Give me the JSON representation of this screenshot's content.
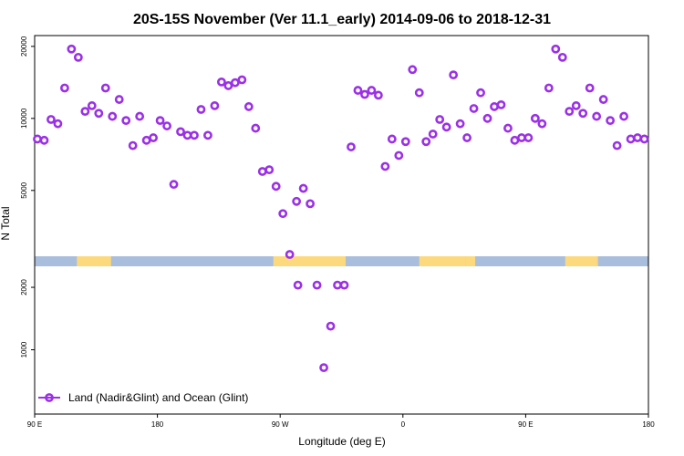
{
  "chart_data": {
    "type": "scatter",
    "title": "20S-15S November (Ver 11.1_early)   2014-09-06 to 2018-12-31",
    "xlabel": "Longitude (deg E)",
    "ylabel": "N Total",
    "x_ticks": [
      {
        "value": 90,
        "label": "90 E"
      },
      {
        "value": 180,
        "label": "180"
      },
      {
        "value": 270,
        "label": "90 W"
      },
      {
        "value": 360,
        "label": "0"
      },
      {
        "value": 450,
        "label": "90 E"
      },
      {
        "value": 540,
        "label": "180"
      }
    ],
    "upper_panel": {
      "scale": "log",
      "ylim": [
        2700,
        22000
      ],
      "y_ticks": [
        5000,
        10000,
        20000
      ]
    },
    "lower_panel": {
      "scale": "log",
      "ylim": [
        500,
        2500
      ],
      "y_ticks": [
        1000,
        2000
      ]
    },
    "band": {
      "ocean_color": "#a8bedc",
      "land_color": "#fdd97d",
      "land_segments": [
        [
          121,
          146
        ],
        [
          265,
          318
        ],
        [
          372,
          406
        ],
        [
          406,
          413
        ],
        [
          479,
          502
        ],
        [
          502,
          503
        ]
      ]
    },
    "series": [
      {
        "name": "Land (Nadir&Glint) and Ocean (Glint)",
        "color": "#9b30e6",
        "x": [
          92,
          97,
          102,
          107,
          112,
          117,
          122,
          127,
          132,
          137,
          142,
          147,
          152,
          157,
          162,
          167,
          172,
          177,
          182,
          187,
          192,
          197,
          202,
          207,
          212,
          217,
          222,
          227,
          232,
          237,
          242,
          247,
          252,
          257,
          262,
          267,
          272,
          277,
          282,
          287,
          292,
          297,
          302,
          307,
          312,
          317,
          322,
          327,
          332,
          337,
          342,
          347,
          352,
          357,
          362,
          367,
          372,
          377,
          382,
          387,
          392,
          397,
          402,
          407,
          412,
          417,
          422,
          427,
          432,
          437,
          442,
          447,
          452,
          457,
          462,
          467,
          472,
          477,
          482,
          487,
          492,
          497,
          502,
          507,
          512,
          517,
          522,
          527,
          532,
          537
        ],
        "y": [
          8200,
          8100,
          9900,
          9500,
          13400,
          19500,
          18000,
          10700,
          11300,
          10500,
          13400,
          10200,
          12000,
          9800,
          7700,
          10200,
          8100,
          8300,
          9800,
          9300,
          5300,
          8800,
          8500,
          8500,
          10900,
          8500,
          11300,
          14200,
          13700,
          14100,
          14500,
          11200,
          9100,
          6000,
          6100,
          5200,
          4000,
          2700,
          4500,
          5100,
          4400,
          2050,
          820,
          1300,
          2050,
          2050,
          7600,
          13100,
          12600,
          13100,
          12500,
          6300,
          8200,
          7000,
          8000,
          16000,
          12800,
          8000,
          8600,
          9900,
          9200,
          15200,
          9500,
          8300,
          11000,
          12800,
          10000,
          11200,
          11400,
          9100,
          8100,
          8300,
          8300,
          10000,
          9500,
          13400,
          19500,
          18000,
          10700,
          11300,
          10500,
          13400,
          10200,
          12000,
          9800,
          7700,
          10200,
          8200,
          8300,
          8200
        ],
        "lower_extra": [
          {
            "x": 283,
            "y": 2050
          }
        ]
      }
    ],
    "legend_position": "bottom-left"
  }
}
